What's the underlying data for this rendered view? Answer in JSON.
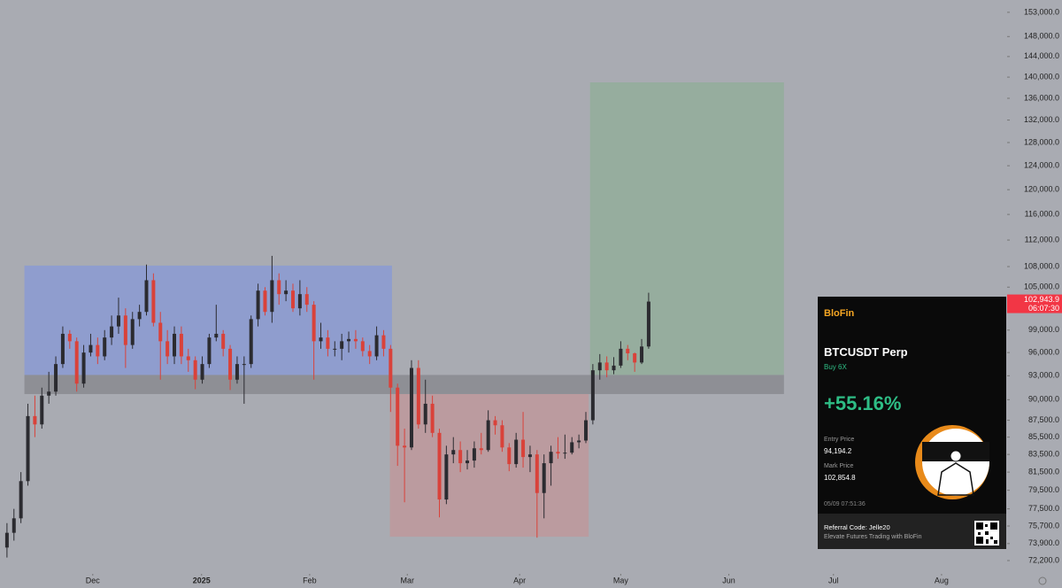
{
  "chart_data": {
    "type": "candlestick",
    "log_scale": true,
    "ylim": [
      70900,
      155600
    ],
    "xlim": [
      -1,
      143.4
    ],
    "yticks": [
      {
        "value": 72200,
        "label": "72,200.0"
      },
      {
        "value": 73900,
        "label": "73,900.0"
      },
      {
        "value": 75700,
        "label": "75,700.0"
      },
      {
        "value": 77500,
        "label": "77,500.0"
      },
      {
        "value": 79500,
        "label": "79,500.0"
      },
      {
        "value": 81500,
        "label": "81,500.0"
      },
      {
        "value": 83500,
        "label": "83,500.0"
      },
      {
        "value": 85500,
        "label": "85,500.0"
      },
      {
        "value": 87500,
        "label": "87,500.0"
      },
      {
        "value": 90000,
        "label": "90,000.0"
      },
      {
        "value": 93000,
        "label": "93,000.0"
      },
      {
        "value": 96000,
        "label": "96,000.0"
      },
      {
        "value": 99000,
        "label": "99,000.0"
      },
      {
        "value": 105000,
        "label": "105,000.0"
      },
      {
        "value": 108000,
        "label": "108,000.0"
      },
      {
        "value": 112000,
        "label": "112,000.0"
      },
      {
        "value": 116000,
        "label": "116,000.0"
      },
      {
        "value": 120000,
        "label": "120,000.0"
      },
      {
        "value": 124000,
        "label": "124,000.0"
      },
      {
        "value": 128000,
        "label": "128,000.0"
      },
      {
        "value": 132000,
        "label": "132,000.0"
      },
      {
        "value": 136000,
        "label": "136,000.0"
      },
      {
        "value": 140000,
        "label": "140,000.0"
      },
      {
        "value": 144000,
        "label": "144,000.0"
      },
      {
        "value": 148000,
        "label": "148,000.0"
      },
      {
        "value": 153000,
        "label": "153,000.0"
      }
    ],
    "xticks": [
      {
        "value": 12.3,
        "label": "Dec"
      },
      {
        "value": 27.9,
        "label": "2025"
      },
      {
        "value": 43.4,
        "label": "Feb"
      },
      {
        "value": 57.4,
        "label": "Mar"
      },
      {
        "value": 73.5,
        "label": "Apr"
      },
      {
        "value": 88.0,
        "label": "May"
      },
      {
        "value": 103.5,
        "label": "Jun"
      },
      {
        "value": 118.5,
        "label": "Jul"
      },
      {
        "value": 134.0,
        "label": "Aug"
      }
    ],
    "up_color": "#2b2b30",
    "down_color": "#d9423a",
    "open": [
      73500,
      75000,
      76500,
      80500,
      88000,
      87000,
      90500,
      91000,
      94500,
      98500,
      97500,
      92000,
      96000,
      97000,
      95500,
      98000,
      99500,
      101000,
      97000,
      100500,
      101500,
      106000,
      100000,
      97500,
      95500,
      98500,
      95500,
      95000,
      92500,
      94500,
      98000,
      98500,
      96500,
      92500,
      94500,
      94500,
      100500,
      104500,
      101500,
      106000,
      104000,
      104500,
      102000,
      104000,
      102500,
      97500,
      98000,
      96500,
      96500,
      97500,
      97800,
      97500,
      96200,
      95500,
      98300,
      96500,
      91500,
      84500,
      84300,
      94000,
      87000,
      89500,
      86000,
      78500,
      83500,
      84000,
      82500,
      82800,
      84200,
      84000,
      87500,
      86900,
      84300,
      82400,
      85200,
      83200,
      83500,
      79200,
      82500,
      83800,
      83600,
      83700,
      84900,
      85100,
      87500,
      93700,
      94700,
      93700,
      94300,
      96500,
      95900,
      94700,
      96800
    ],
    "high": [
      76000,
      77500,
      81500,
      89500,
      90500,
      91500,
      93500,
      95500,
      99500,
      99000,
      98000,
      97000,
      98500,
      98000,
      99000,
      101000,
      103500,
      102000,
      101500,
      102500,
      108300,
      107000,
      101500,
      99000,
      99500,
      99500,
      96500,
      95500,
      95500,
      98500,
      102500,
      99000,
      97000,
      95500,
      95500,
      101000,
      105500,
      105000,
      109600,
      107000,
      106000,
      105500,
      106000,
      105000,
      103000,
      100000,
      99000,
      97500,
      98500,
      98800,
      99000,
      98000,
      97000,
      99500,
      99000,
      97000,
      92000,
      86500,
      95000,
      95000,
      92500,
      90500,
      86500,
      84500,
      85500,
      85000,
      84000,
      85000,
      86000,
      88700,
      88000,
      87500,
      84800,
      86000,
      88500,
      84500,
      84000,
      83500,
      84500,
      85500,
      85800,
      85500,
      85800,
      88500,
      94500,
      95800,
      95500,
      95400,
      97500,
      97000,
      96000,
      97800,
      104200
    ],
    "low": [
      72500,
      74200,
      76000,
      80000,
      85500,
      86500,
      89500,
      90500,
      94000,
      96500,
      91000,
      91500,
      95500,
      94500,
      95000,
      97000,
      98500,
      94000,
      96500,
      99500,
      101000,
      99500,
      92500,
      94500,
      94500,
      94500,
      93500,
      91300,
      92000,
      94000,
      97500,
      95500,
      91200,
      92000,
      89500,
      94000,
      99500,
      101000,
      100000,
      102500,
      103000,
      101500,
      101000,
      101500,
      92500,
      96500,
      95500,
      95500,
      95000,
      96000,
      96500,
      95500,
      94500,
      95000,
      95500,
      88500,
      82200,
      78200,
      84000,
      86500,
      86000,
      85500,
      76600,
      78000,
      82500,
      81500,
      81800,
      82000,
      83500,
      83800,
      85800,
      83800,
      81600,
      82000,
      82000,
      81500,
      74500,
      76500,
      80000,
      83000,
      83000,
      83500,
      84200,
      84800,
      87000,
      92500,
      92800,
      93200,
      94000,
      95000,
      93500,
      94500,
      96500
    ],
    "close": [
      75000,
      76500,
      80500,
      88000,
      87000,
      90500,
      91000,
      94500,
      98500,
      97500,
      92000,
      96000,
      97000,
      95500,
      98000,
      99500,
      101000,
      97000,
      100500,
      101500,
      106000,
      100000,
      97500,
      95500,
      98500,
      95500,
      95000,
      92500,
      94500,
      98000,
      98500,
      96500,
      92500,
      94500,
      94500,
      100500,
      104500,
      101500,
      106000,
      104000,
      104500,
      102000,
      104000,
      102500,
      97500,
      98000,
      96500,
      96500,
      97500,
      97800,
      97500,
      96200,
      95500,
      98300,
      96500,
      91500,
      84500,
      84300,
      94000,
      87000,
      89500,
      86000,
      78500,
      83500,
      84000,
      82500,
      82800,
      84200,
      84000,
      87500,
      86900,
      84300,
      82400,
      85200,
      83200,
      83500,
      79200,
      82500,
      83800,
      83600,
      83700,
      84900,
      85100,
      87500,
      93700,
      94700,
      93700,
      94300,
      96500,
      95900,
      94700,
      96800,
      102943.9
    ],
    "zones": [
      {
        "x": [
          2.5,
          55.2
        ],
        "y": [
          93100,
          108150
        ],
        "color": "#8c9bd0"
      },
      {
        "x": [
          54.9,
          83.4
        ],
        "y": [
          74600,
          90700
        ],
        "color": "#bd999c"
      },
      {
        "x": [
          83.6,
          111.4
        ],
        "y": [
          93100,
          139000
        ],
        "color": "#93ad9b"
      },
      {
        "x": [
          2.5,
          111.4
        ],
        "y": [
          90700,
          93100
        ],
        "color": "#8b8c91"
      }
    ],
    "last_price": {
      "value": 102943.9,
      "label": "102,943.9"
    },
    "countdown": "06:07:30"
  },
  "card": {
    "brand": "BloFin",
    "symbol": "BTCUSDT Perp",
    "side": "Buy 6X",
    "pnl": "+55.16%",
    "entry_label": "Entry Price",
    "entry_price": "94,194.2",
    "mark_label": "Mark Price",
    "mark_price": "102,854.8",
    "timestamp": "05/09 07:51:36",
    "referral": "Referral Code: Jelle20",
    "tagline": "Elevate Futures Trading with BloFin"
  }
}
